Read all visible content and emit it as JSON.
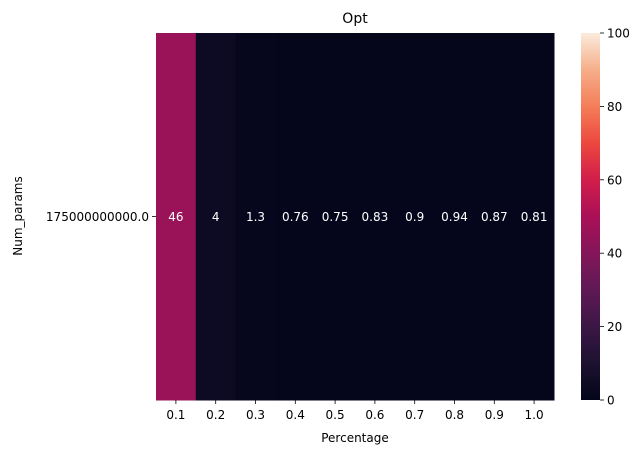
{
  "chart_data": {
    "type": "heatmap",
    "title": "Opt",
    "xlabel": "Percentage",
    "ylabel": "Num_params",
    "x_categories": [
      "0.1",
      "0.2",
      "0.3",
      "0.4",
      "0.5",
      "0.6",
      "0.7",
      "0.8",
      "0.9",
      "1.0"
    ],
    "y_categories": [
      "175000000000.0"
    ],
    "values": [
      [
        46,
        4,
        1.3,
        0.76,
        0.75,
        0.83,
        0.9,
        0.94,
        0.87,
        0.81
      ]
    ],
    "value_labels": [
      [
        "46",
        "4",
        "1.3",
        "0.76",
        "0.75",
        "0.83",
        "0.9",
        "0.94",
        "0.87",
        "0.81"
      ]
    ],
    "colorbar": {
      "range": [
        0,
        100
      ],
      "ticks": [
        0,
        20,
        40,
        60,
        80,
        100
      ],
      "colormap": "rocket"
    }
  }
}
